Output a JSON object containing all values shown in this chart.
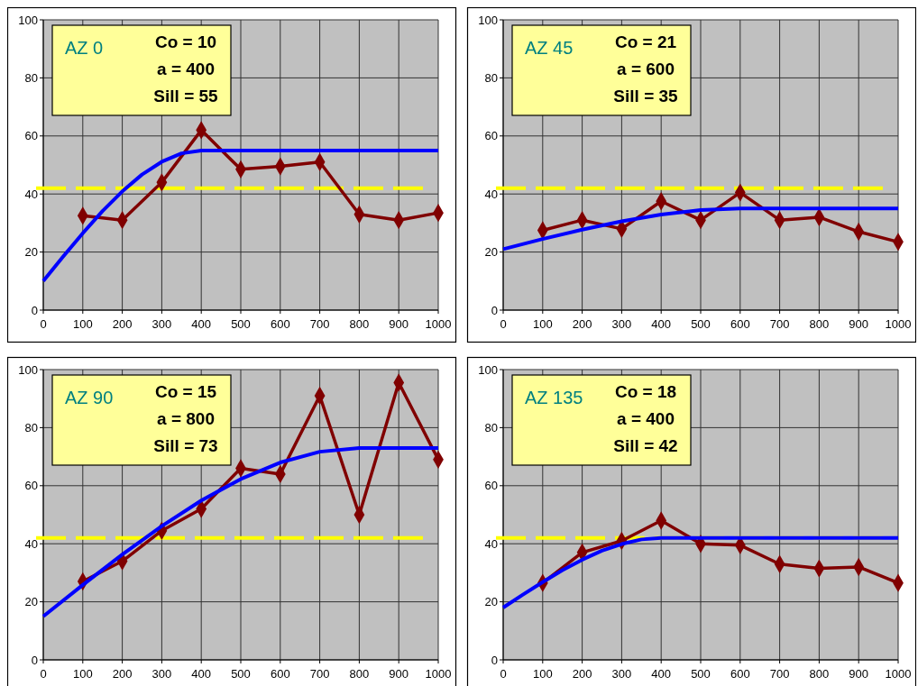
{
  "chart_data": [
    {
      "type": "line",
      "title": "AZ 0",
      "annotations": [
        "Co = 10",
        "a = 400",
        "Sill = 55"
      ],
      "xlim": [
        0,
        1000
      ],
      "xticks": [
        0,
        100,
        200,
        300,
        400,
        500,
        600,
        700,
        800,
        900,
        1000
      ],
      "ylim": [
        0,
        100
      ],
      "yticks": [
        0,
        20,
        40,
        60,
        80,
        100
      ],
      "grid": true,
      "series": [
        {
          "color": "#800000",
          "marker": "diamond",
          "x": [
            100,
            200,
            300,
            400,
            500,
            600,
            700,
            800,
            900,
            1000
          ],
          "values": [
            32.5,
            31,
            44,
            62,
            48.5,
            49.5,
            51,
            33,
            31,
            33.5
          ]
        },
        {
          "color": "#0000ff",
          "marker": "none",
          "x": [
            0,
            50,
            100,
            150,
            200,
            250,
            300,
            350,
            400,
            1000
          ],
          "values": [
            10,
            18.4,
            26.5,
            34.1,
            40.9,
            46.7,
            51.1,
            54,
            55,
            55
          ]
        }
      ],
      "ref_lines": [
        {
          "axis": "y",
          "value": 42,
          "color": "#ffff00",
          "line_style": "dashed"
        }
      ]
    },
    {
      "type": "line",
      "title": "AZ 45",
      "annotations": [
        "Co = 21",
        "a = 600",
        "Sill = 35"
      ],
      "xlim": [
        0,
        1000
      ],
      "xticks": [
        0,
        100,
        200,
        300,
        400,
        500,
        600,
        700,
        800,
        900,
        1000
      ],
      "ylim": [
        0,
        100
      ],
      "yticks": [
        0,
        20,
        40,
        60,
        80,
        100
      ],
      "grid": true,
      "series": [
        {
          "color": "#800000",
          "marker": "diamond",
          "x": [
            100,
            200,
            300,
            400,
            500,
            600,
            700,
            800,
            900,
            1000
          ],
          "values": [
            27.5,
            31,
            28,
            37.5,
            31,
            40.5,
            31,
            32,
            27,
            23.5
          ]
        },
        {
          "color": "#0000ff",
          "marker": "none",
          "x": [
            0,
            100,
            200,
            300,
            400,
            500,
            600,
            1000
          ],
          "values": [
            21,
            24.5,
            27.7,
            30.6,
            32.9,
            34.5,
            35,
            35
          ]
        }
      ],
      "ref_lines": [
        {
          "axis": "y",
          "value": 42,
          "color": "#ffff00",
          "line_style": "dashed"
        }
      ]
    },
    {
      "type": "line",
      "title": "AZ 90",
      "annotations": [
        "Co = 15",
        "a = 800",
        "Sill = 73"
      ],
      "xlim": [
        0,
        1000
      ],
      "xticks": [
        0,
        100,
        200,
        300,
        400,
        500,
        600,
        700,
        800,
        900,
        1000
      ],
      "ylim": [
        0,
        100
      ],
      "yticks": [
        0,
        20,
        40,
        60,
        80,
        100
      ],
      "grid": true,
      "series": [
        {
          "color": "#800000",
          "marker": "diamond",
          "x": [
            100,
            200,
            300,
            400,
            500,
            600,
            700,
            800,
            900,
            1000
          ],
          "values": [
            27,
            34,
            44.5,
            52,
            66,
            64,
            91,
            50,
            95.5,
            69
          ]
        },
        {
          "color": "#0000ff",
          "marker": "none",
          "x": [
            0,
            100,
            200,
            300,
            400,
            500,
            600,
            700,
            800,
            1000
          ],
          "values": [
            15,
            25.8,
            36.3,
            46.1,
            54.9,
            62.3,
            68,
            71.7,
            73,
            73
          ]
        }
      ],
      "ref_lines": [
        {
          "axis": "y",
          "value": 42,
          "color": "#ffff00",
          "line_style": "dashed"
        }
      ]
    },
    {
      "type": "line",
      "title": "AZ 135",
      "annotations": [
        "Co = 18",
        "a = 400",
        "Sill = 42"
      ],
      "xlim": [
        0,
        1000
      ],
      "xticks": [
        0,
        100,
        200,
        300,
        400,
        500,
        600,
        700,
        800,
        900,
        1000
      ],
      "ylim": [
        0,
        100
      ],
      "yticks": [
        0,
        20,
        40,
        60,
        80,
        100
      ],
      "grid": true,
      "series": [
        {
          "color": "#800000",
          "marker": "diamond",
          "x": [
            100,
            200,
            300,
            400,
            500,
            600,
            700,
            800,
            900,
            1000
          ],
          "values": [
            26.5,
            37,
            41,
            48,
            40,
            39.5,
            33,
            31.5,
            32,
            26.5
          ]
        },
        {
          "color": "#0000ff",
          "marker": "none",
          "x": [
            0,
            50,
            100,
            150,
            200,
            250,
            300,
            350,
            400,
            1000
          ],
          "values": [
            18,
            22.5,
            26.8,
            30.9,
            34.5,
            37.6,
            39.9,
            41.5,
            42,
            42
          ]
        }
      ],
      "ref_lines": [
        {
          "axis": "y",
          "value": 42,
          "color": "#ffff00",
          "line_style": "dashed"
        }
      ]
    }
  ]
}
